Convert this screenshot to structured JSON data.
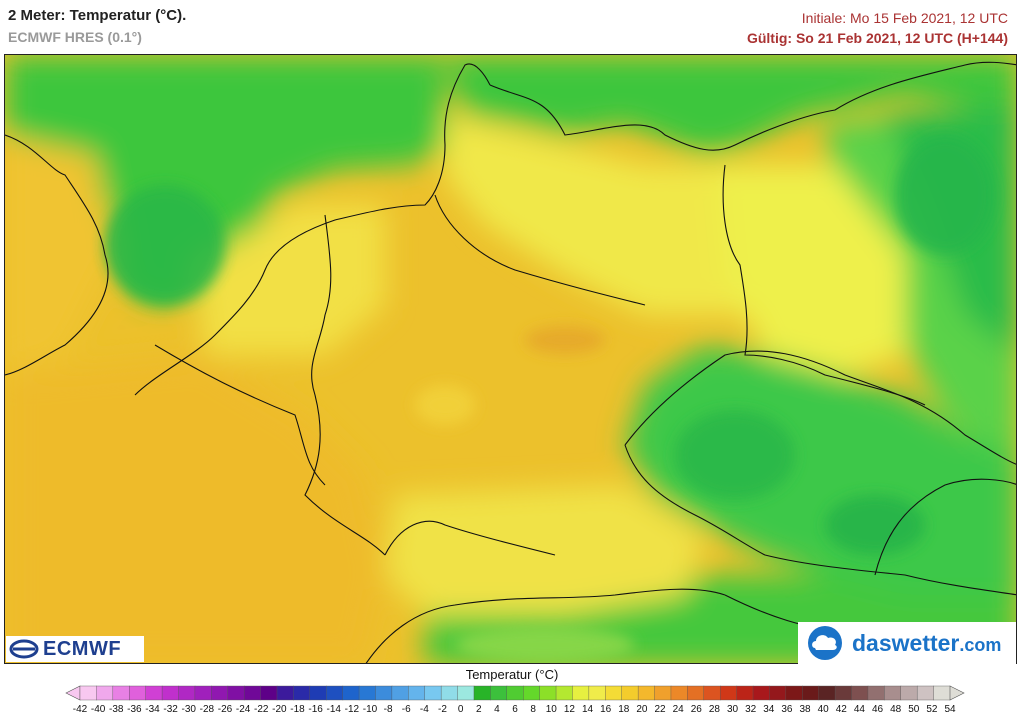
{
  "header": {
    "title": "2 Meter: Temperatur (°C).",
    "model": "ECMWF HRES (0.1°)",
    "initial": "Initiale: Mo 15 Feb 2021, 12 UTC",
    "valid": "Gültig: So 21 Feb 2021, 12 UTC (H+144)"
  },
  "logos": {
    "ecmwf": "ECMWF",
    "daswetter_name": "daswetter",
    "daswetter_tld": ".com"
  },
  "legend": {
    "title": "Temperatur (°C)",
    "ticks": [
      -42,
      -40,
      -38,
      -36,
      -34,
      -32,
      -30,
      -28,
      -26,
      -24,
      -22,
      -20,
      -18,
      -16,
      -14,
      -12,
      -10,
      -8,
      -6,
      -4,
      -2,
      0,
      2,
      4,
      6,
      8,
      10,
      12,
      14,
      16,
      18,
      20,
      22,
      24,
      26,
      28,
      30,
      32,
      34,
      36,
      38,
      40,
      42,
      44,
      46,
      48,
      50,
      52,
      54
    ],
    "colors": [
      "#f8c8f0",
      "#f0a8ec",
      "#e880e4",
      "#e060dc",
      "#d040d4",
      "#c030cc",
      "#b028c4",
      "#a020bc",
      "#9018b0",
      "#8010a4",
      "#700898",
      "#5e0088",
      "#3c1a9c",
      "#2a2aa8",
      "#1e3cb4",
      "#1e50c0",
      "#1e64cc",
      "#2878d4",
      "#3c8cdc",
      "#50a0e4",
      "#64b4ec",
      "#78c8f0",
      "#90dce8",
      "#9ce8e0",
      "#28b428",
      "#3cc03c",
      "#50cc32",
      "#64d82a",
      "#8ce028",
      "#b4e830",
      "#e6f040",
      "#f0ec4a",
      "#f4dc36",
      "#f4cc2c",
      "#f4b82c",
      "#f0a02c",
      "#ec8828",
      "#e47024",
      "#dc5420",
      "#d03818",
      "#bc2418",
      "#a8181c",
      "#94181c",
      "#7c1818",
      "#6a1a1a",
      "#5a2424",
      "#6a3a3a",
      "#7e5050",
      "#927070",
      "#a88e8e",
      "#bcaaaa",
      "#cec2c2",
      "#deddd6"
    ]
  }
}
